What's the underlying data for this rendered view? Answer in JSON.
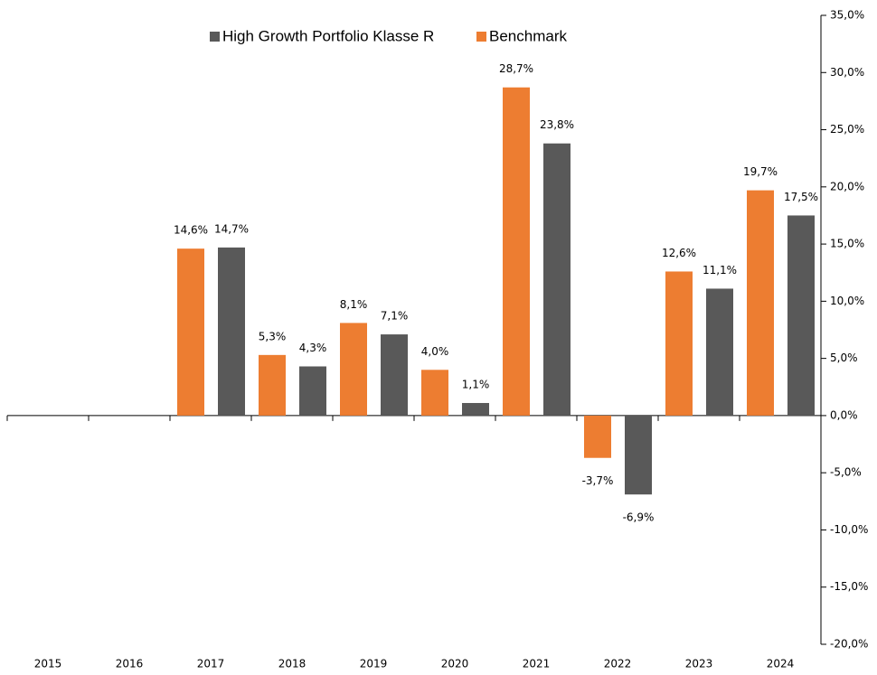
{
  "chart_data": {
    "type": "bar",
    "categories": [
      "2015",
      "2016",
      "2017",
      "2018",
      "2019",
      "2020",
      "2021",
      "2022",
      "2023",
      "2024"
    ],
    "series": [
      {
        "name": "High Growth Portfolio Klasse R",
        "color": "#595959",
        "values": [
          null,
          null,
          14.7,
          4.3,
          7.1,
          1.1,
          23.8,
          -6.9,
          11.1,
          17.5
        ],
        "value_labels": [
          null,
          null,
          "14,7%",
          "4,3%",
          "7,1%",
          "1,1%",
          "23,8%",
          "-6,9%",
          "11,1%",
          "17,5%"
        ]
      },
      {
        "name": "Benchmark",
        "color": "#ed7d31",
        "values": [
          null,
          null,
          14.6,
          5.3,
          8.1,
          4.0,
          28.7,
          -3.7,
          12.6,
          19.7
        ],
        "value_labels": [
          null,
          null,
          "14,6%",
          "5,3%",
          "8,1%",
          "4,0%",
          "28,7%",
          "-3,7%",
          "12,6%",
          "19,7%"
        ]
      }
    ],
    "ylim": [
      -20,
      35
    ],
    "yticks": [
      {
        "value": -20,
        "label": "-20,0%"
      },
      {
        "value": -15,
        "label": "-15,0%"
      },
      {
        "value": -10,
        "label": "-10,0%"
      },
      {
        "value": -5,
        "label": "-5,0%"
      },
      {
        "value": 0,
        "label": "0,0%"
      },
      {
        "value": 5,
        "label": "5,0%"
      },
      {
        "value": 10,
        "label": "10,0%"
      },
      {
        "value": 15,
        "label": "15,0%"
      },
      {
        "value": 20,
        "label": "20,0%"
      },
      {
        "value": 25,
        "label": "25,0%"
      },
      {
        "value": 30,
        "label": "30,0%"
      },
      {
        "value": 35,
        "label": "35,0%"
      }
    ],
    "y_axis_side": "right",
    "legend": "top",
    "grid": false
  }
}
